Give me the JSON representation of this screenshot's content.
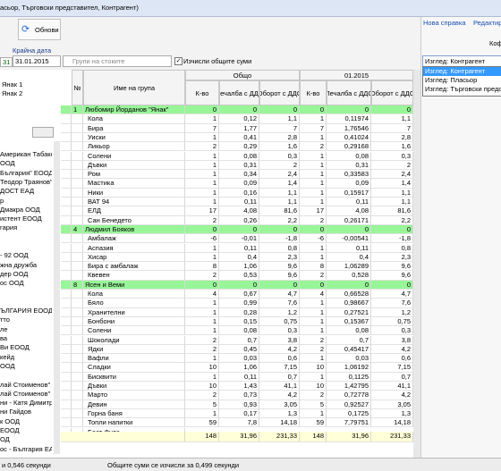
{
  "window": {
    "title": "асьор, Търговски представител, Контрагент)"
  },
  "toolbar": {
    "refresh": "Обнови",
    "end_date_label": "Крайна дата",
    "start_day": "31",
    "end_date": "31.01.2015",
    "groups_placeholder": "Групи на стоките",
    "compute_totals": "Изчисли общите суми"
  },
  "left_panel": {
    "top_items": [
      "Янак 1",
      "Янак 2"
    ],
    "items": [
      "Американ Табако",
      "ООД",
      "България\" ЕООД",
      "Теодор Траянов\"",
      "ДОСТ ЕАД",
      "р",
      "Дмакра ООД",
      "истент ЕООД",
      "гария",
      "- 92 ООД",
      "жна дружба",
      "дер ООД",
      "ос ООД",
      "ЪЛГАРИЯ ЕООД",
      "тто",
      "ле",
      "ва",
      "Ви ЕООД",
      "кейд",
      "ООД",
      "лай Стоименов\"",
      "лай Стоименов\"",
      "ни - Катя Димитро",
      "ни Гайдов",
      "к ООД",
      "ЕООД",
      "ОД",
      "ос - България ЕАД"
    ]
  },
  "right_panel": {
    "new_report": "Нова справка",
    "edit": "Редактир",
    "coffee": "Кофе",
    "view_selected": "Изглед: Контрагент",
    "view_options": [
      "Изглед: Контрагент",
      "Изглед: Пласьор",
      "Изглед: Търговски предст"
    ]
  },
  "grid": {
    "headers": {
      "number": "№",
      "name": "Име на група",
      "total": "Общо",
      "period": "01.2015",
      "qty": "К-во",
      "profit": "Печалба с ДДС",
      "turnover": "Оборот с ДДС",
      "qty2": "К-во",
      "profit2": "Печалба с ДДС",
      "turnover2": "Оборот с ДДС"
    },
    "rows": [
      {
        "number": "1",
        "name": "Любомир Йорданов \"Янак\"",
        "cells": [
          "0",
          "0",
          "0",
          "0",
          "0",
          "0"
        ]
      },
      {
        "name": "Кола",
        "cells": [
          "1",
          "0,12",
          "1,1",
          "1",
          "0,11974",
          "1,1"
        ]
      },
      {
        "name": "Бира",
        "cells": [
          "7",
          "1,77",
          "7",
          "7",
          "1,76546",
          "7"
        ]
      },
      {
        "name": "Уиски",
        "cells": [
          "1",
          "0,41",
          "2,8",
          "1",
          "0,41024",
          "2,8"
        ]
      },
      {
        "name": "Ликьор",
        "cells": [
          "2",
          "0,29",
          "1,6",
          "2",
          "0,29168",
          "1,6"
        ]
      },
      {
        "name": "Солени",
        "cells": [
          "1",
          "0,08",
          "0,3",
          "1",
          "0,08",
          "0,3"
        ]
      },
      {
        "name": "Дъвки",
        "cells": [
          "1",
          "0,31",
          "2",
          "1",
          "0,31",
          "2"
        ]
      },
      {
        "name": "Ром",
        "cells": [
          "1",
          "0,34",
          "2,4",
          "1",
          "0,33583",
          "2,4"
        ]
      },
      {
        "name": "Мастика",
        "cells": [
          "1",
          "0,09",
          "1,4",
          "1",
          "0,09",
          "1,4"
        ]
      },
      {
        "name": "Ники",
        "cells": [
          "1",
          "0,16",
          "1,1",
          "1",
          "0,15917",
          "1,1"
        ]
      },
      {
        "name": "ВАТ 94",
        "cells": [
          "1",
          "0,11",
          "1,1",
          "1",
          "0,11",
          "1,1"
        ]
      },
      {
        "name": "ЕЛД",
        "cells": [
          "17",
          "4,08",
          "81,6",
          "17",
          "4,08",
          "81,6"
        ]
      },
      {
        "name": "Сан Бенедето",
        "cells": [
          "2",
          "0,26",
          "2,2",
          "2",
          "0,26171",
          "2,2"
        ]
      },
      {
        "number": "4",
        "name": "Людмил Бояков",
        "cells": [
          "0",
          "0",
          "0",
          "0",
          "0",
          "0"
        ]
      },
      {
        "name": "Амбалаж",
        "cells": [
          "-6",
          "-0,01",
          "-1,8",
          "-6",
          "-0,00541",
          "-1,8"
        ]
      },
      {
        "name": "Аспазия",
        "cells": [
          "1",
          "0,11",
          "0,8",
          "1",
          "0,11",
          "0,8"
        ]
      },
      {
        "name": "Хисар",
        "cells": [
          "1",
          "0,4",
          "2,3",
          "1",
          "0,4",
          "2,3"
        ]
      },
      {
        "name": "Бира с амбалаж",
        "cells": [
          "8",
          "1,06",
          "9,6",
          "8",
          "1,06289",
          "9,6"
        ]
      },
      {
        "name": "Квевен",
        "cells": [
          "2",
          "0,53",
          "9,6",
          "2",
          "0,528",
          "9,6"
        ]
      },
      {
        "number": "8",
        "name": "Ясен и Веми",
        "cells": [
          "0",
          "0",
          "0",
          "0",
          "0",
          "0"
        ]
      },
      {
        "name": "Кола",
        "cells": [
          "4",
          "0,67",
          "4,7",
          "4",
          "0,66528",
          "4,7"
        ]
      },
      {
        "name": "Бяло",
        "cells": [
          "1",
          "0,99",
          "7,6",
          "1",
          "0,98667",
          "7,6"
        ]
      },
      {
        "name": "Хранителни",
        "cells": [
          "1",
          "0,28",
          "1,2",
          "1",
          "0,27521",
          "1,2"
        ]
      },
      {
        "name": "Бонбони",
        "cells": [
          "1",
          "0,15",
          "0,75",
          "1",
          "0,15367",
          "0,75"
        ]
      },
      {
        "name": "Солени",
        "cells": [
          "1",
          "0,08",
          "0,3",
          "1",
          "0,08",
          "0,3"
        ]
      },
      {
        "name": "Шоколади",
        "cells": [
          "2",
          "0,7",
          "3,8",
          "2",
          "0,7",
          "3,8"
        ]
      },
      {
        "name": "Ядки",
        "cells": [
          "2",
          "0,45",
          "4,2",
          "2",
          "0,45417",
          "4,2"
        ]
      },
      {
        "name": "Вафли",
        "cells": [
          "1",
          "0,03",
          "0,6",
          "1",
          "0,03",
          "0,6"
        ]
      },
      {
        "name": "Сладки",
        "cells": [
          "10",
          "1,06",
          "7,15",
          "10",
          "1,06192",
          "7,15"
        ]
      },
      {
        "name": "Бисквити",
        "cells": [
          "1",
          "0,11",
          "0,7",
          "1",
          "0,1125",
          "0,7"
        ]
      },
      {
        "name": "Дъвки",
        "cells": [
          "10",
          "1,43",
          "41,1",
          "10",
          "1,42795",
          "41,1"
        ]
      },
      {
        "name": "Марто",
        "cells": [
          "2",
          "0,73",
          "4,2",
          "2",
          "0,72778",
          "4,2"
        ]
      },
      {
        "name": "Девин",
        "cells": [
          "5",
          "0,93",
          "3,05",
          "5",
          "0,92527",
          "3,05"
        ]
      },
      {
        "name": "Горна баня",
        "cells": [
          "1",
          "0,17",
          "1,3",
          "1",
          "0,1725",
          "1,3"
        ]
      },
      {
        "name": "Топли напитки",
        "cells": [
          "59",
          "7,8",
          "14,18",
          "59",
          "7,79751",
          "14,18"
        ]
      },
      {
        "name": "Бест Фудс"
      }
    ],
    "totals": [
      "148",
      "31,96",
      "231,33",
      "148",
      "31,96",
      "231,33"
    ]
  },
  "status": {
    "left": "и 0,546 секунди",
    "right": "Общите суми се изчисли за 0,499 секунди"
  }
}
